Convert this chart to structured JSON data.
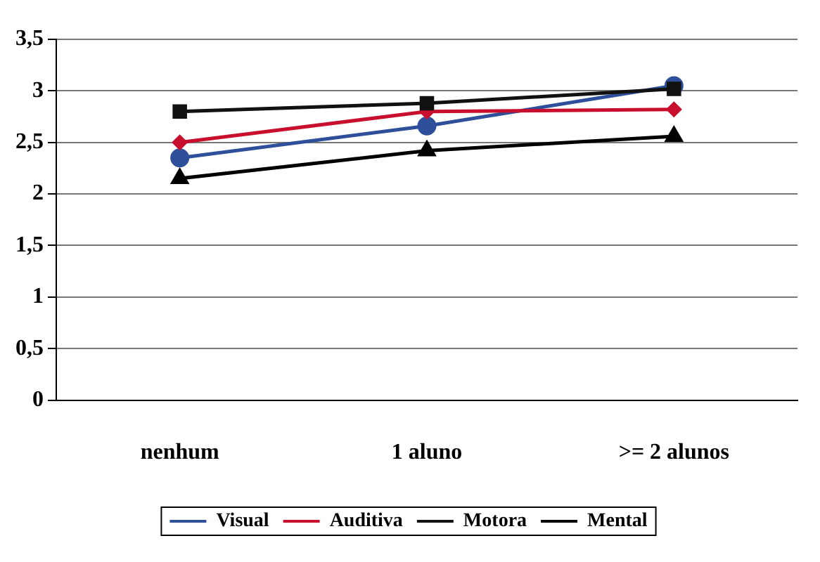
{
  "chart_data": {
    "type": "line",
    "categories": [
      "nenhum",
      "1 aluno",
      ">= 2 alunos"
    ],
    "series": [
      {
        "name": "Visual",
        "color": "#2e4f9a",
        "marker": "circle",
        "values": [
          2.35,
          2.66,
          3.05
        ]
      },
      {
        "name": "Auditiva",
        "color": "#c8102e",
        "marker": "diamond",
        "values": [
          2.5,
          2.8,
          2.82
        ]
      },
      {
        "name": "Motora",
        "color": "#111111",
        "marker": "square",
        "values": [
          2.8,
          2.88,
          3.02
        ]
      },
      {
        "name": "Mental",
        "color": "#000000",
        "marker": "triangle",
        "values": [
          2.15,
          2.42,
          2.56
        ]
      }
    ],
    "ylim": [
      0,
      3.5
    ],
    "yticks": [
      {
        "value": 0,
        "label": "0"
      },
      {
        "value": 0.5,
        "label": "0,5"
      },
      {
        "value": 1,
        "label": "1"
      },
      {
        "value": 1.5,
        "label": "1,5"
      },
      {
        "value": 2,
        "label": "2"
      },
      {
        "value": 2.5,
        "label": "2,5"
      },
      {
        "value": 3,
        "label": "3"
      },
      {
        "value": 3.5,
        "label": "3,5"
      }
    ],
    "grid": "y",
    "legend": "bottom",
    "line_style": "solid"
  }
}
